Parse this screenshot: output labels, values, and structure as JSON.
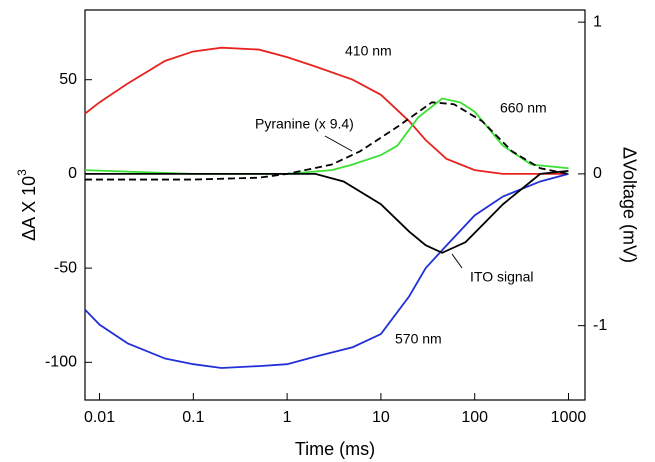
{
  "chart_data": {
    "type": "line",
    "xscale": "log",
    "xlabel": "Time (ms)",
    "ylabel": {
      "text": "ΔA X 10",
      "superscript": "3"
    },
    "y2label": "ΔVoltage (mV)",
    "xlim": [
      0.007,
      1500
    ],
    "xticks": [
      0.01,
      0.1,
      1,
      10,
      100,
      1000
    ],
    "ylim": [
      -120,
      87
    ],
    "yticks": [
      -100,
      -50,
      0,
      50
    ],
    "y2lim": [
      -1.49,
      1.08
    ],
    "y2ticks": [
      -1,
      0,
      1
    ],
    "series": [
      {
        "name": "410 nm",
        "color": "#e8231f",
        "x": [
          0.007,
          0.01,
          0.02,
          0.05,
          0.1,
          0.2,
          0.5,
          1,
          2,
          5,
          10,
          20,
          30,
          50,
          100,
          200,
          500,
          1000
        ],
        "values": [
          32,
          38,
          48,
          60,
          65,
          67,
          66,
          62,
          57,
          50,
          42,
          28,
          18,
          8,
          2,
          0,
          0,
          0
        ]
      },
      {
        "name": "570 nm",
        "color": "#2230d8",
        "x": [
          0.007,
          0.01,
          0.02,
          0.05,
          0.1,
          0.2,
          0.5,
          1,
          2,
          5,
          10,
          20,
          30,
          50,
          100,
          200,
          500,
          1000
        ],
        "values": [
          -72,
          -80,
          -90,
          -98,
          -101,
          -103,
          -102,
          -101,
          -97,
          -92,
          -85,
          -65,
          -50,
          -38,
          -22,
          -12,
          -4,
          0
        ]
      },
      {
        "name": "660 nm",
        "color": "#3ae032",
        "x": [
          0.007,
          0.1,
          1,
          3,
          5,
          10,
          15,
          25,
          45,
          70,
          100,
          200,
          400,
          1000
        ],
        "values": [
          2,
          0,
          0,
          2,
          5,
          10,
          15,
          30,
          40,
          38,
          33,
          15,
          5,
          3
        ]
      },
      {
        "name": "Pyranine (x 9.4)",
        "color": "#000000",
        "dashed": true,
        "x": [
          0.007,
          0.1,
          0.5,
          1,
          3,
          6,
          15,
          35,
          60,
          120,
          250,
          500,
          1000
        ],
        "values": [
          -3,
          -3,
          -2,
          0,
          5,
          12,
          25,
          38,
          37,
          28,
          12,
          3,
          0
        ]
      },
      {
        "name": "ITO signal",
        "color": "#000000",
        "axis": "y2",
        "x": [
          0.007,
          0.1,
          1,
          2,
          4,
          10,
          20,
          30,
          45,
          80,
          200,
          500,
          1000
        ],
        "values": [
          0,
          0,
          0,
          0,
          -0.05,
          -0.2,
          -0.38,
          -0.47,
          -0.52,
          -0.45,
          -0.2,
          0,
          0.02
        ]
      }
    ]
  }
}
